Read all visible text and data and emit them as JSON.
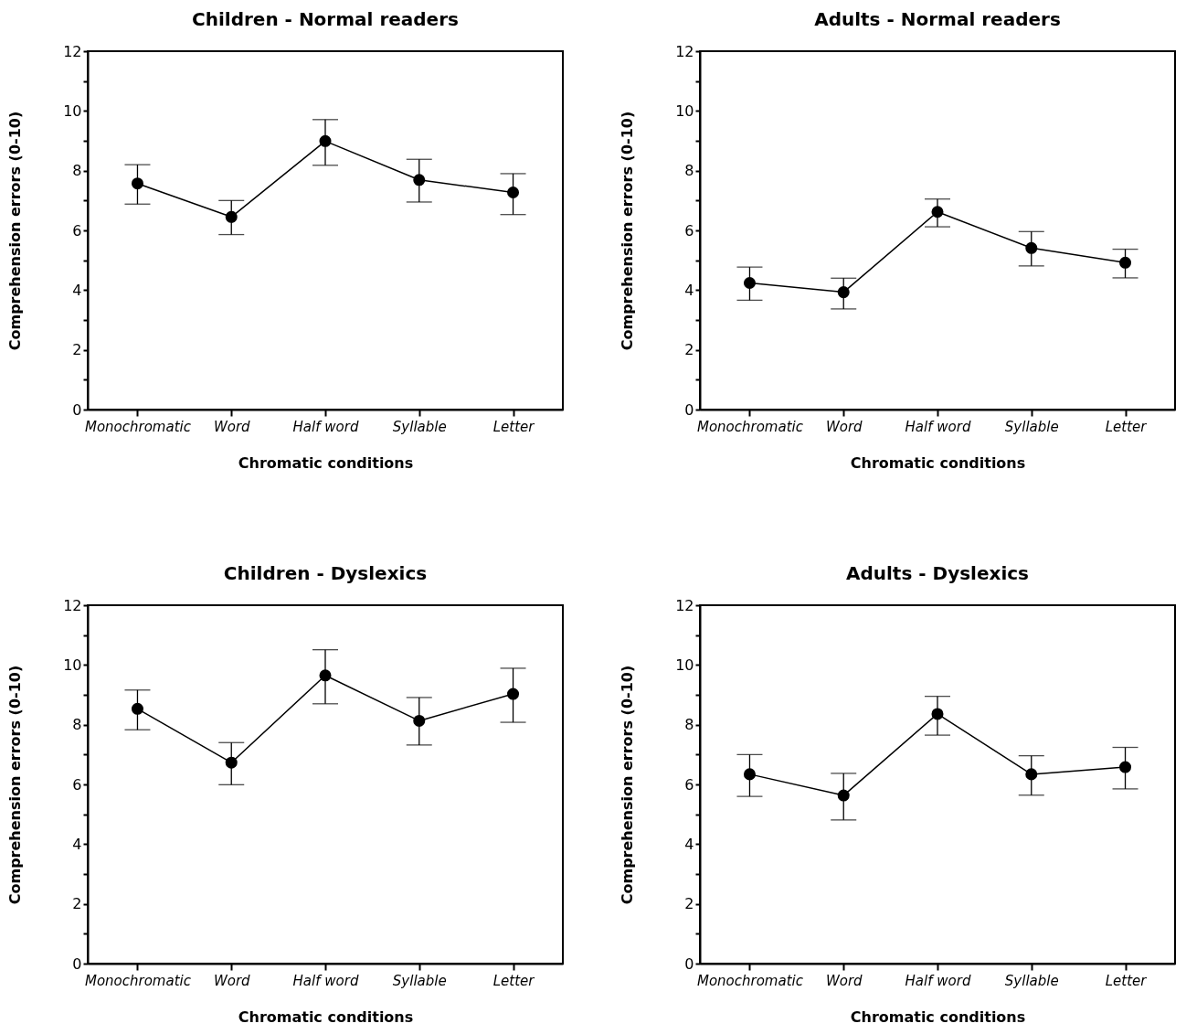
{
  "chart_data": [
    {
      "type": "line",
      "title": "Children - Normal readers",
      "xlabel": "Chromatic conditions",
      "ylabel": "Comprehension errors (0-10)",
      "categories": [
        "Monochromatic",
        "Word",
        "Half word",
        "Syllable",
        "Letter"
      ],
      "series": [
        {
          "color": "#000000",
          "values": [
            7.57,
            6.45,
            8.99,
            7.69,
            7.27
          ],
          "errors": [
            [
              6.88,
              8.2
            ],
            [
              5.86,
              7.0
            ],
            [
              8.18,
              9.71
            ],
            [
              6.95,
              8.38
            ],
            [
              6.53,
              7.9
            ]
          ]
        }
      ],
      "ylim": [
        0,
        12
      ],
      "yticks": [
        0,
        {
          "value": 1,
          "label": null
        },
        2,
        {
          "value": 3,
          "label": null
        },
        4,
        {
          "value": 5,
          "label": null
        },
        6,
        {
          "value": 7,
          "label": null
        },
        8,
        {
          "value": 9,
          "label": null
        },
        10,
        {
          "value": 11,
          "label": null
        },
        12
      ],
      "marker": "circle",
      "line_style": "solid"
    },
    {
      "type": "line",
      "title": "Adults - Normal readers",
      "xlabel": "Chromatic conditions",
      "ylabel": "Comprehension errors (0-10)",
      "categories": [
        "Monochromatic",
        "Word",
        "Half word",
        "Syllable",
        "Letter"
      ],
      "series": [
        {
          "color": "#000000",
          "values": [
            4.24,
            3.93,
            6.62,
            5.41,
            4.92
          ],
          "errors": [
            [
              3.66,
              4.77
            ],
            [
              3.37,
              4.4
            ],
            [
              6.12,
              7.05
            ],
            [
              4.81,
              5.96
            ],
            [
              4.41,
              5.37
            ]
          ]
        }
      ],
      "ylim": [
        0,
        12
      ],
      "yticks": [
        0,
        {
          "value": 1,
          "label": null
        },
        2,
        {
          "value": 3,
          "label": null
        },
        4,
        {
          "value": 5,
          "label": null
        },
        6,
        {
          "value": 7,
          "label": null
        },
        8,
        {
          "value": 9,
          "label": null
        },
        10,
        {
          "value": 11,
          "label": null
        },
        12
      ],
      "marker": "circle",
      "line_style": "solid"
    },
    {
      "type": "line",
      "title": "Children - Dyslexics",
      "xlabel": "Chromatic conditions",
      "ylabel": "Comprehension errors (0-10)",
      "categories": [
        "Monochromatic",
        "Word",
        "Half word",
        "Syllable",
        "Letter"
      ],
      "series": [
        {
          "color": "#000000",
          "values": [
            8.53,
            6.73,
            9.65,
            8.13,
            9.03
          ],
          "errors": [
            [
              7.83,
              9.16
            ],
            [
              5.99,
              7.4
            ],
            [
              8.7,
              10.51
            ],
            [
              7.32,
              8.91
            ],
            [
              8.08,
              9.89
            ]
          ]
        }
      ],
      "ylim": [
        0,
        12
      ],
      "yticks": [
        0,
        {
          "value": 1,
          "label": null
        },
        2,
        {
          "value": 3,
          "label": null
        },
        4,
        {
          "value": 5,
          "label": null
        },
        6,
        {
          "value": 7,
          "label": null
        },
        8,
        {
          "value": 9,
          "label": null
        },
        10,
        {
          "value": 11,
          "label": null
        },
        12
      ],
      "marker": "circle",
      "line_style": "solid"
    },
    {
      "type": "line",
      "title": "Adults - Dyslexics",
      "xlabel": "Chromatic conditions",
      "ylabel": "Comprehension errors (0-10)",
      "categories": [
        "Monochromatic",
        "Word",
        "Half word",
        "Syllable",
        "Letter"
      ],
      "series": [
        {
          "color": "#000000",
          "values": [
            6.34,
            5.63,
            8.36,
            6.34,
            6.58
          ],
          "errors": [
            [
              5.6,
              7.0
            ],
            [
              4.81,
              6.37
            ],
            [
              7.65,
              8.95
            ],
            [
              5.64,
              6.96
            ],
            [
              5.85,
              7.24
            ]
          ]
        }
      ],
      "ylim": [
        0,
        12
      ],
      "yticks": [
        0,
        {
          "value": 1,
          "label": null
        },
        2,
        {
          "value": 3,
          "label": null
        },
        4,
        {
          "value": 5,
          "label": null
        },
        6,
        {
          "value": 7,
          "label": null
        },
        8,
        {
          "value": 9,
          "label": null
        },
        10,
        {
          "value": 11,
          "label": null
        },
        12
      ],
      "marker": "circle",
      "line_style": "solid"
    }
  ]
}
